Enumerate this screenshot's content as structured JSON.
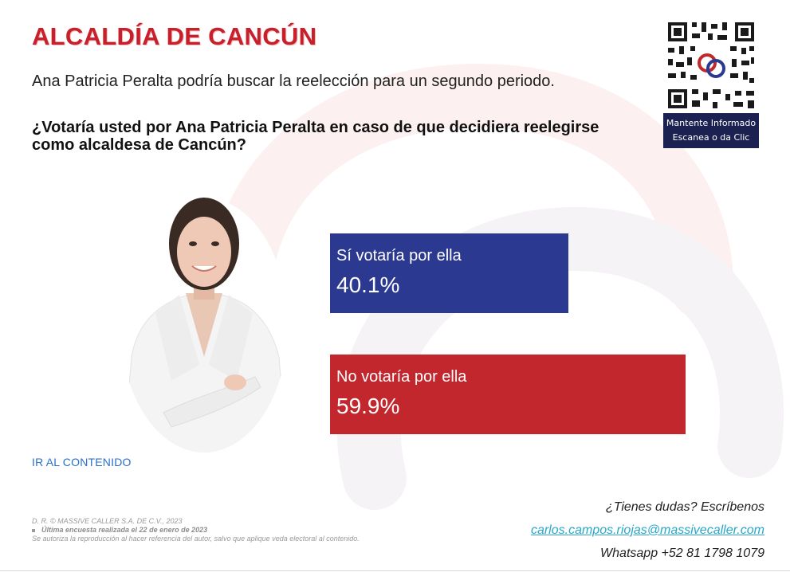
{
  "header": {
    "title": "ALCALDÍA DE CANCÚN",
    "subtitle": "Ana Patricia Peralta podría buscar la reelección para un segundo periodo.",
    "question": "¿Votaría usted por Ana Patricia Peralta en caso de que decidiera reelegirse como alcaldesa de Cancún?"
  },
  "qr": {
    "caption_line1": "Mantente Informado",
    "caption_line2": "Escanea o da Clic"
  },
  "chart_data": {
    "type": "bar",
    "orientation": "horizontal",
    "categories": [
      "Sí votaría por ella",
      "No votaría por ella"
    ],
    "values": [
      40.1,
      59.9
    ],
    "value_labels": [
      "40.1%",
      "59.9%"
    ],
    "colors": [
      "#2b3990",
      "#c1272d"
    ],
    "xlim": [
      0,
      59.9
    ]
  },
  "link": {
    "text": "IR AL CONTENIDO"
  },
  "footer": {
    "legal_line1": "D. R. © MASSIVE CALLER S.A. DE C.V., 2023",
    "legal_line2": "Última encuesta realizada el 22 de enero de 2023",
    "legal_line3": "Se autoriza la reproducción al hacer referencia del autor, salvo que aplique veda electoral al contenido."
  },
  "contact": {
    "prompt": "¿Tienes dudas? Escríbenos",
    "email": "carlos.campos.riojas@massivecaller.com",
    "whatsapp": "Whatsapp +52 81 1798 1079"
  },
  "colors": {
    "title_red": "#c8202a",
    "navy": "#1b2150",
    "bar_blue": "#2b3990",
    "bar_red": "#c1272d"
  },
  "icons": {
    "qr": "qr-code-icon",
    "person": "person-photo"
  }
}
